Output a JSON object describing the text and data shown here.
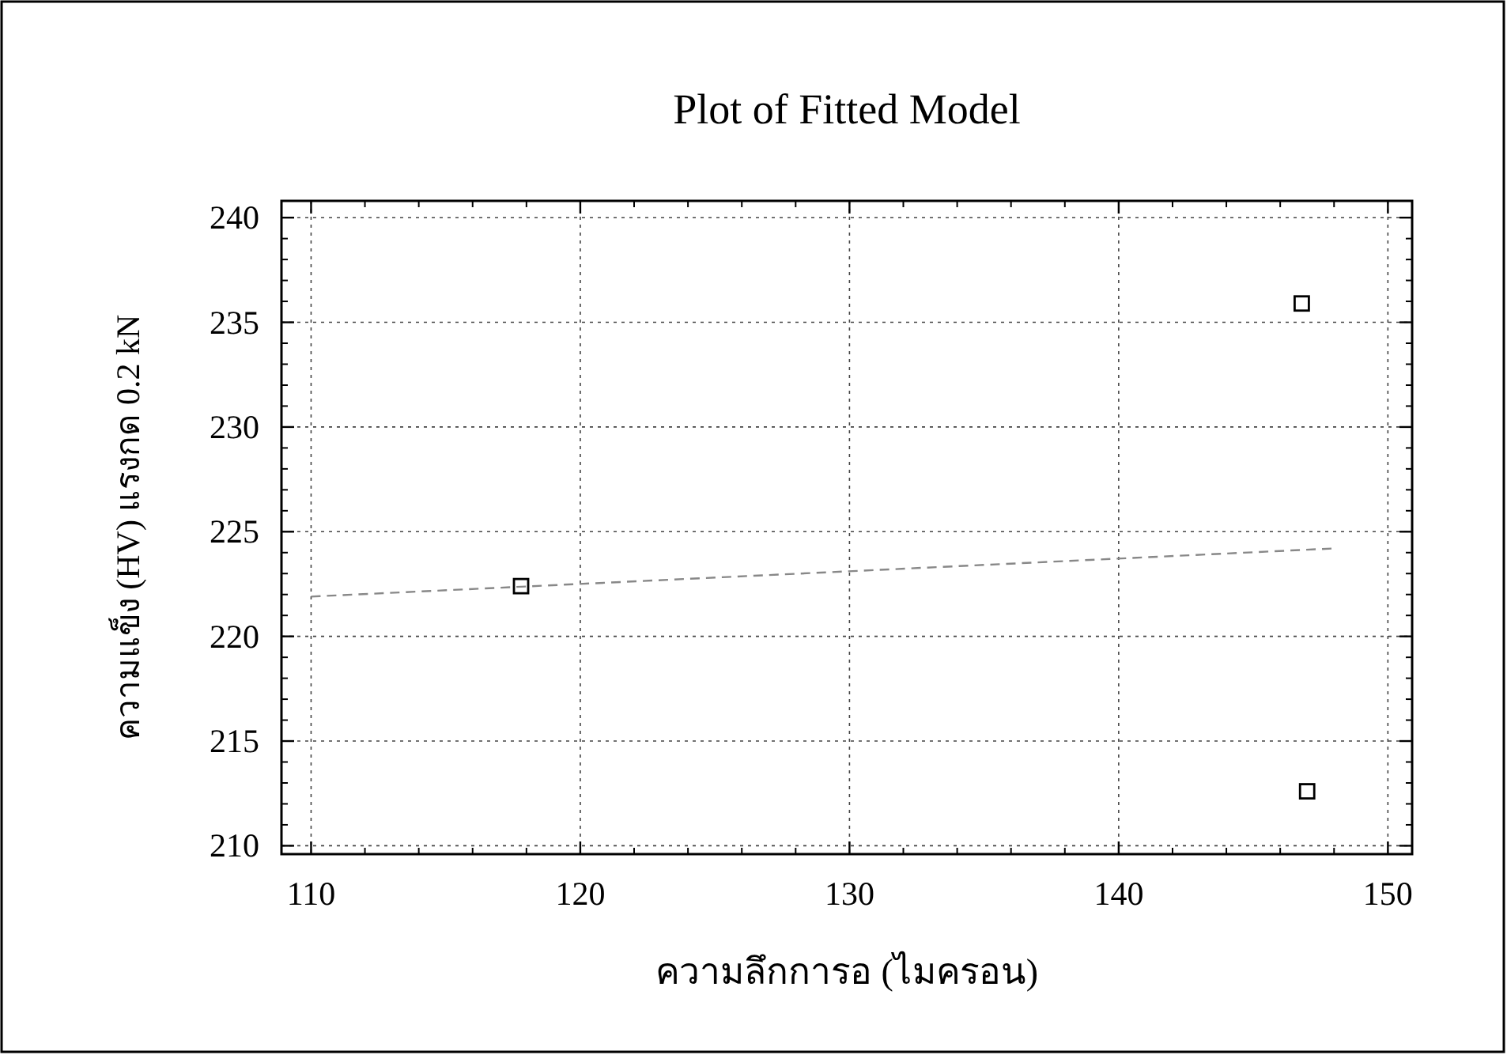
{
  "chart_data": {
    "type": "scatter",
    "title": "Plot of Fitted Model",
    "xlabel": "ความลึกการอ (ไมครอน)",
    "ylabel": "ความแข็ง (HV) แรงกด 0.2 kN",
    "xlim": [
      108.9,
      150.9
    ],
    "xticks": [
      110,
      120,
      130,
      140,
      150
    ],
    "ylim": [
      209.6,
      240.8
    ],
    "yticks": [
      210,
      215,
      220,
      225,
      230,
      235,
      240
    ],
    "grid": true,
    "series": [
      {
        "marker": "square",
        "color": "#000000",
        "x": [
          117.8,
          146.8,
          147.0
        ],
        "values": [
          222.4,
          235.9,
          212.6
        ]
      },
      {
        "type": "line",
        "color": "#888888",
        "line_style": "dashed",
        "x": [
          110,
          148
        ],
        "values": [
          221.9,
          224.2
        ]
      }
    ]
  }
}
